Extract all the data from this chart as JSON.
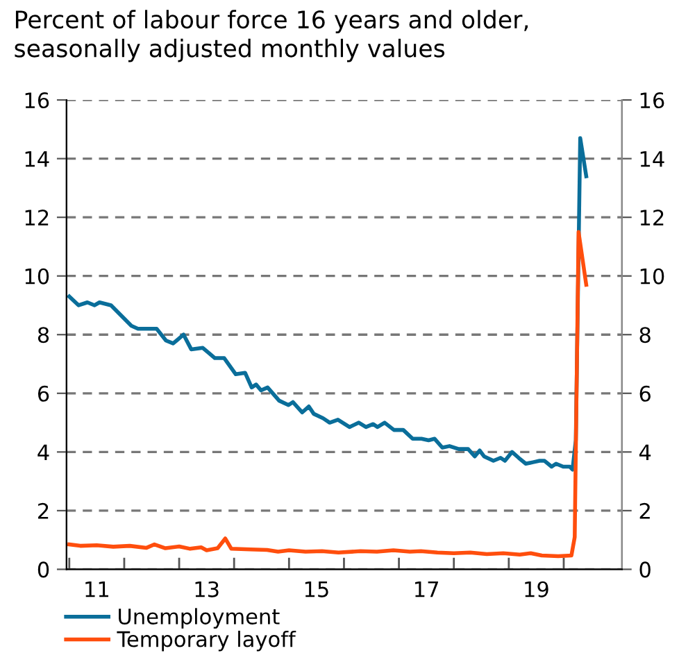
{
  "chart_data": {
    "type": "line",
    "title": "Percent of labour force 16 years and older,\nseasonally adjusted monthly values",
    "series": [
      {
        "name": "Unemployment",
        "color": "#0a6e9a",
        "x": [
          10.5,
          10.67,
          10.83,
          10.96,
          11.05,
          11.26,
          11.63,
          11.75,
          12.09,
          12.26,
          12.39,
          12.58,
          12.72,
          12.93,
          13.15,
          13.32,
          13.53,
          13.7,
          13.82,
          13.9,
          13.99,
          14.11,
          14.32,
          14.49,
          14.57,
          14.74,
          14.86,
          14.95,
          15.12,
          15.24,
          15.39,
          15.6,
          15.77,
          15.9,
          16.03,
          16.11,
          16.24,
          16.41,
          16.58,
          16.75,
          16.91,
          17.04,
          17.15,
          17.29,
          17.42,
          17.59,
          17.76,
          17.88,
          17.97,
          18.05,
          18.22,
          18.35,
          18.43,
          18.56,
          18.68,
          18.81,
          18.94,
          19.06,
          19.15,
          19.28,
          19.36,
          19.49,
          19.61,
          19.66,
          19.72,
          19.8,
          19.91
        ],
        "values": [
          9.3,
          9.0,
          9.1,
          9.0,
          9.1,
          9.0,
          8.3,
          8.2,
          8.2,
          7.8,
          7.7,
          8.0,
          7.5,
          7.55,
          7.2,
          7.2,
          6.65,
          6.7,
          6.2,
          6.3,
          6.1,
          6.2,
          5.75,
          5.6,
          5.7,
          5.35,
          5.55,
          5.3,
          5.15,
          5.0,
          5.1,
          4.85,
          5.0,
          4.85,
          4.95,
          4.85,
          5.0,
          4.75,
          4.75,
          4.45,
          4.45,
          4.4,
          4.45,
          4.15,
          4.2,
          4.1,
          4.1,
          3.85,
          4.05,
          3.85,
          3.7,
          3.8,
          3.7,
          4.0,
          3.8,
          3.6,
          3.65,
          3.7,
          3.7,
          3.5,
          3.6,
          3.5,
          3.5,
          3.4,
          4.4,
          14.7,
          13.4
        ]
      },
      {
        "name": "Temporary layoff",
        "color": "#ff4e0d",
        "x": [
          10.5,
          10.7,
          11.0,
          11.3,
          11.6,
          11.9,
          12.05,
          12.25,
          12.5,
          12.7,
          12.9,
          13.0,
          13.2,
          13.34,
          13.45,
          13.8,
          14.1,
          14.3,
          14.5,
          14.8,
          15.1,
          15.4,
          15.8,
          16.1,
          16.4,
          16.7,
          16.9,
          17.2,
          17.5,
          17.8,
          18.1,
          18.4,
          18.7,
          18.9,
          19.1,
          19.4,
          19.64,
          19.7,
          19.77,
          19.91
        ],
        "values": [
          0.85,
          0.8,
          0.82,
          0.77,
          0.8,
          0.73,
          0.85,
          0.72,
          0.78,
          0.7,
          0.75,
          0.65,
          0.72,
          1.05,
          0.7,
          0.68,
          0.66,
          0.6,
          0.65,
          0.6,
          0.62,
          0.57,
          0.62,
          0.6,
          0.65,
          0.6,
          0.62,
          0.57,
          0.55,
          0.57,
          0.52,
          0.55,
          0.5,
          0.55,
          0.47,
          0.45,
          0.47,
          1.1,
          11.5,
          9.7
        ]
      }
    ],
    "xlim": [
      10.45,
      20.56
    ],
    "xticks": [
      {
        "value": 10.5,
        "label": null
      },
      {
        "value": 11.5,
        "label": null
      },
      {
        "value": 12.5,
        "label": null
      },
      {
        "value": 13.5,
        "label": null
      },
      {
        "value": 14.5,
        "label": null
      },
      {
        "value": 15.5,
        "label": null
      },
      {
        "value": 16.5,
        "label": null
      },
      {
        "value": 17.5,
        "label": null
      },
      {
        "value": 18.5,
        "label": null
      },
      {
        "value": 19.5,
        "label": null
      },
      11,
      13,
      15,
      17,
      19
    ],
    "ylim": [
      0,
      16
    ],
    "yticks": [
      0,
      2,
      4,
      6,
      8,
      10,
      12,
      14,
      16
    ],
    "y2lim": [
      0,
      16
    ],
    "y2ticks": [
      0,
      2,
      4,
      6,
      8,
      10,
      12,
      14,
      16
    ],
    "grid": "y",
    "legend": "bottom left",
    "marker": "none",
    "line_style": "solid"
  }
}
